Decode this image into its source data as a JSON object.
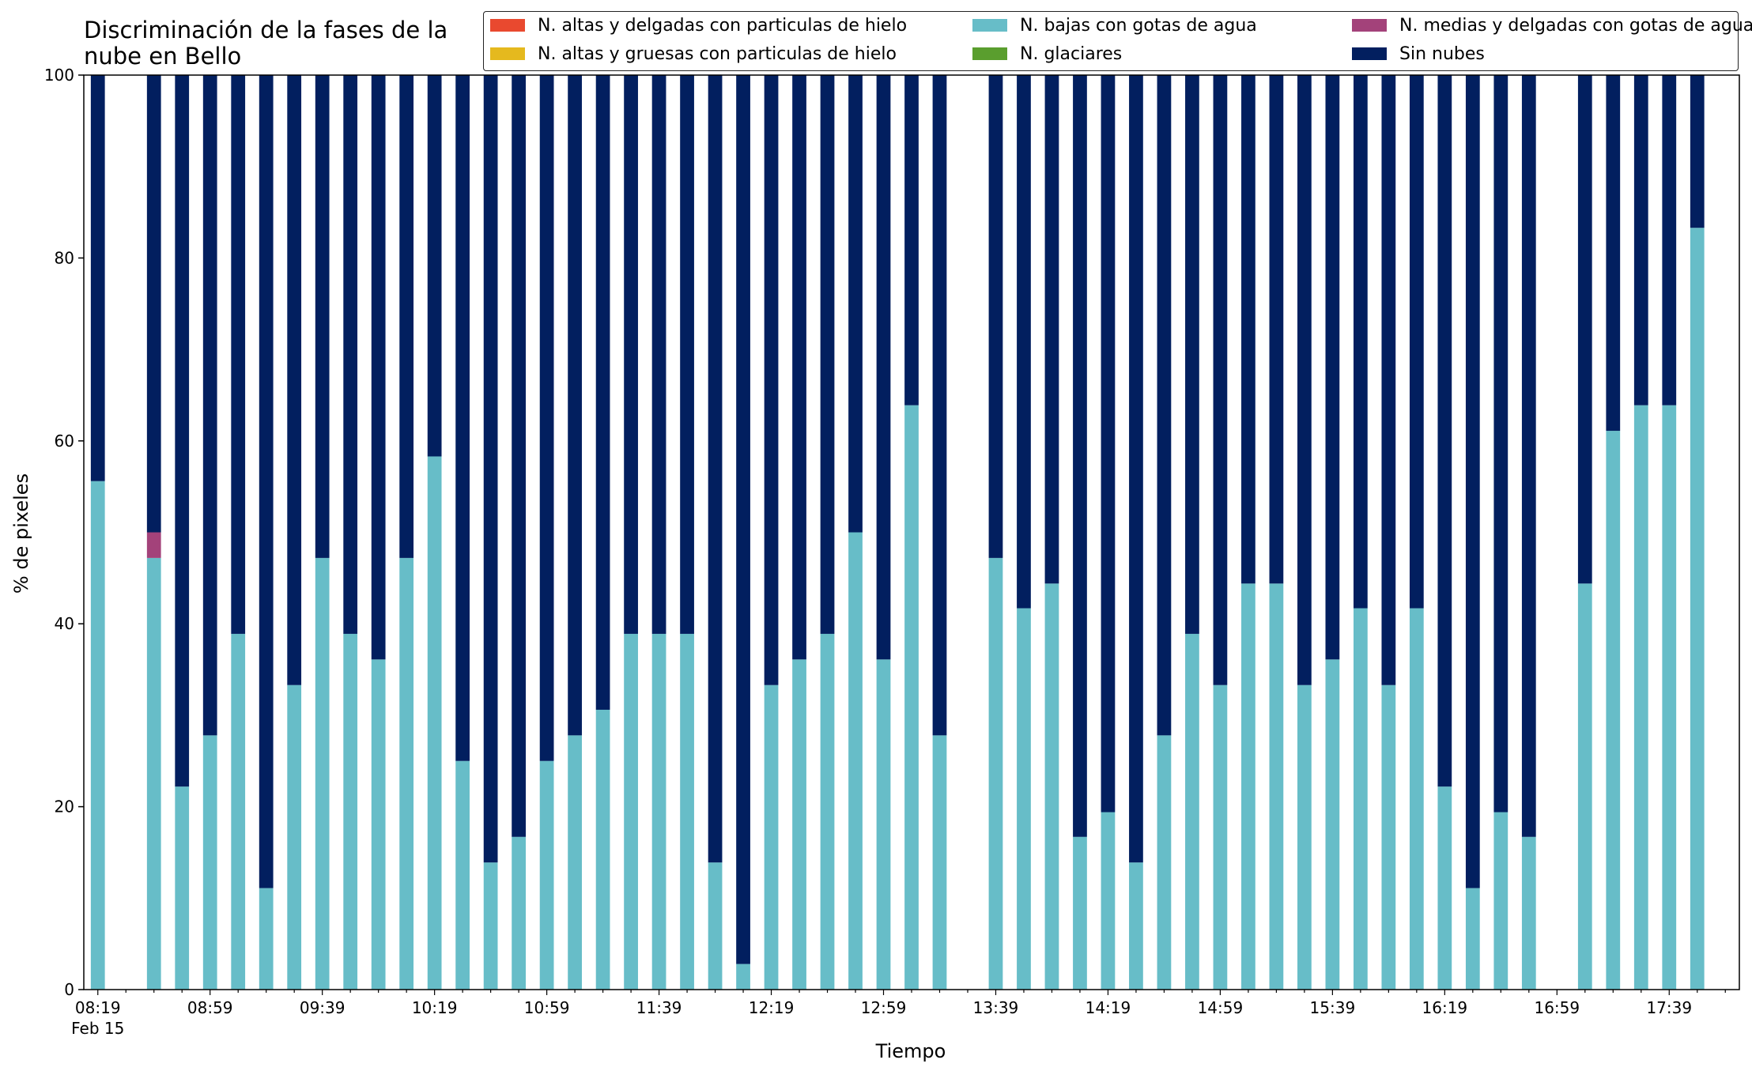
{
  "chart_data": {
    "type": "bar",
    "stacked": true,
    "title_lines": [
      "Discriminación de la fases de la",
      "nube en Bello"
    ],
    "xlabel": "Tiempo",
    "ylabel": "% de pixeles",
    "ylim": [
      0,
      100
    ],
    "yticks": [
      0,
      20,
      40,
      60,
      80,
      100
    ],
    "grid": false,
    "legend_position": "top-right",
    "xlim_slots": [
      -0.5,
      58.5
    ],
    "x_tick_labels": [
      {
        "slot": 0,
        "label": "08:19",
        "sublabel": "Feb 15"
      },
      {
        "slot": 4,
        "label": "08:59"
      },
      {
        "slot": 8,
        "label": "09:39"
      },
      {
        "slot": 12,
        "label": "10:19"
      },
      {
        "slot": 16,
        "label": "10:59"
      },
      {
        "slot": 20,
        "label": "11:39"
      },
      {
        "slot": 24,
        "label": "12:19"
      },
      {
        "slot": 28,
        "label": "12:59"
      },
      {
        "slot": 32,
        "label": "13:39"
      },
      {
        "slot": 36,
        "label": "14:19"
      },
      {
        "slot": 40,
        "label": "14:59"
      },
      {
        "slot": 44,
        "label": "15:39"
      },
      {
        "slot": 48,
        "label": "16:19"
      },
      {
        "slot": 52,
        "label": "16:59"
      },
      {
        "slot": 56,
        "label": "17:39"
      }
    ],
    "legend": [
      {
        "name": "N. altas y delgadas con particulas de hielo",
        "color": "#e9492f"
      },
      {
        "name": "N. altas y gruesas con particulas de hielo",
        "color": "#e5b91e"
      },
      {
        "name": "N. bajas con gotas de agua",
        "color": "#67bdc8"
      },
      {
        "name": "N. glaciares",
        "color": "#5a9e2e"
      },
      {
        "name": "N. medias y delgadas con gotas de agua",
        "color": "#a3427a"
      },
      {
        "name": "Sin nubes",
        "color": "#021f5f"
      }
    ],
    "bars": [
      {
        "slot": 0,
        "bajas": 55.6,
        "medias": 0,
        "sin": 44.4
      },
      {
        "slot": 2,
        "bajas": 47.2,
        "medias": 2.8,
        "sin": 50.0
      },
      {
        "slot": 3,
        "bajas": 22.2,
        "medias": 0,
        "sin": 77.8
      },
      {
        "slot": 4,
        "bajas": 27.8,
        "medias": 0,
        "sin": 72.2
      },
      {
        "slot": 5,
        "bajas": 38.9,
        "medias": 0,
        "sin": 61.1
      },
      {
        "slot": 6,
        "bajas": 11.1,
        "medias": 0,
        "sin": 88.9
      },
      {
        "slot": 7,
        "bajas": 33.3,
        "medias": 0,
        "sin": 66.7
      },
      {
        "slot": 8,
        "bajas": 47.2,
        "medias": 0,
        "sin": 52.8
      },
      {
        "slot": 9,
        "bajas": 38.9,
        "medias": 0,
        "sin": 61.1
      },
      {
        "slot": 10,
        "bajas": 36.1,
        "medias": 0,
        "sin": 63.9
      },
      {
        "slot": 11,
        "bajas": 47.2,
        "medias": 0,
        "sin": 52.8
      },
      {
        "slot": 12,
        "bajas": 58.3,
        "medias": 0,
        "sin": 41.7
      },
      {
        "slot": 13,
        "bajas": 25.0,
        "medias": 0,
        "sin": 75.0
      },
      {
        "slot": 14,
        "bajas": 13.9,
        "medias": 0,
        "sin": 86.1
      },
      {
        "slot": 15,
        "bajas": 16.7,
        "medias": 0,
        "sin": 83.3
      },
      {
        "slot": 16,
        "bajas": 25.0,
        "medias": 0,
        "sin": 75.0
      },
      {
        "slot": 17,
        "bajas": 27.8,
        "medias": 0,
        "sin": 72.2
      },
      {
        "slot": 18,
        "bajas": 30.6,
        "medias": 0,
        "sin": 69.4
      },
      {
        "slot": 19,
        "bajas": 38.9,
        "medias": 0,
        "sin": 61.1
      },
      {
        "slot": 20,
        "bajas": 38.9,
        "medias": 0,
        "sin": 61.1
      },
      {
        "slot": 21,
        "bajas": 38.9,
        "medias": 0,
        "sin": 61.1
      },
      {
        "slot": 22,
        "bajas": 13.9,
        "medias": 0,
        "sin": 86.1
      },
      {
        "slot": 23,
        "bajas": 2.8,
        "medias": 0,
        "sin": 97.2
      },
      {
        "slot": 24,
        "bajas": 33.3,
        "medias": 0,
        "sin": 66.7
      },
      {
        "slot": 25,
        "bajas": 36.1,
        "medias": 0,
        "sin": 63.9
      },
      {
        "slot": 26,
        "bajas": 38.9,
        "medias": 0,
        "sin": 61.1
      },
      {
        "slot": 27,
        "bajas": 50.0,
        "medias": 0,
        "sin": 50.0
      },
      {
        "slot": 28,
        "bajas": 36.1,
        "medias": 0,
        "sin": 63.9
      },
      {
        "slot": 29,
        "bajas": 63.9,
        "medias": 0,
        "sin": 36.1
      },
      {
        "slot": 30,
        "bajas": 27.8,
        "medias": 0,
        "sin": 72.2
      },
      {
        "slot": 32,
        "bajas": 47.2,
        "medias": 0,
        "sin": 52.8
      },
      {
        "slot": 33,
        "bajas": 41.7,
        "medias": 0,
        "sin": 58.3
      },
      {
        "slot": 34,
        "bajas": 44.4,
        "medias": 0,
        "sin": 55.6
      },
      {
        "slot": 35,
        "bajas": 16.7,
        "medias": 0,
        "sin": 83.3
      },
      {
        "slot": 36,
        "bajas": 19.4,
        "medias": 0,
        "sin": 80.6
      },
      {
        "slot": 37,
        "bajas": 13.9,
        "medias": 0,
        "sin": 86.1
      },
      {
        "slot": 38,
        "bajas": 27.8,
        "medias": 0,
        "sin": 72.2
      },
      {
        "slot": 39,
        "bajas": 38.9,
        "medias": 0,
        "sin": 61.1
      },
      {
        "slot": 40,
        "bajas": 33.3,
        "medias": 0,
        "sin": 66.7
      },
      {
        "slot": 41,
        "bajas": 44.4,
        "medias": 0,
        "sin": 55.6
      },
      {
        "slot": 42,
        "bajas": 44.4,
        "medias": 0,
        "sin": 55.6
      },
      {
        "slot": 43,
        "bajas": 33.3,
        "medias": 0,
        "sin": 66.7
      },
      {
        "slot": 44,
        "bajas": 36.1,
        "medias": 0,
        "sin": 63.9
      },
      {
        "slot": 45,
        "bajas": 41.7,
        "medias": 0,
        "sin": 58.3
      },
      {
        "slot": 46,
        "bajas": 33.3,
        "medias": 0,
        "sin": 66.7
      },
      {
        "slot": 47,
        "bajas": 41.7,
        "medias": 0,
        "sin": 58.3
      },
      {
        "slot": 48,
        "bajas": 22.2,
        "medias": 0,
        "sin": 77.8
      },
      {
        "slot": 49,
        "bajas": 11.1,
        "medias": 0,
        "sin": 88.9
      },
      {
        "slot": 50,
        "bajas": 19.4,
        "medias": 0,
        "sin": 80.6
      },
      {
        "slot": 51,
        "bajas": 16.7,
        "medias": 0,
        "sin": 83.3
      },
      {
        "slot": 53,
        "bajas": 44.4,
        "medias": 0,
        "sin": 55.6
      },
      {
        "slot": 54,
        "bajas": 61.1,
        "medias": 0,
        "sin": 38.9
      },
      {
        "slot": 55,
        "bajas": 63.9,
        "medias": 0,
        "sin": 36.1
      },
      {
        "slot": 56,
        "bajas": 63.9,
        "medias": 0,
        "sin": 36.1
      },
      {
        "slot": 57,
        "bajas": 83.3,
        "medias": 0,
        "sin": 16.7
      }
    ]
  }
}
